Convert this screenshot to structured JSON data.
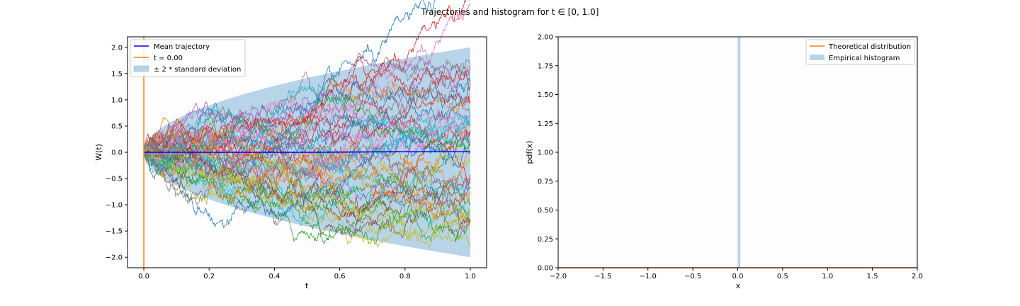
{
  "figure": {
    "title": "Trajectories and histogram for t ∈ [0, 1.0]"
  },
  "chart_data": [
    {
      "type": "line",
      "xlabel": "t",
      "ylabel": "W(t)",
      "xlim": [
        -0.05,
        1.05
      ],
      "ylim": [
        -2.2,
        2.2
      ],
      "xticks": [
        "0.0",
        "0.2",
        "0.4",
        "0.6",
        "0.8",
        "1.0"
      ],
      "xtick_values": [
        0.0,
        0.2,
        0.4,
        0.6,
        0.8,
        1.0
      ],
      "yticks": [
        "−2.0",
        "−1.5",
        "−1.0",
        "−0.5",
        "0.0",
        "0.5",
        "1.0",
        "1.5",
        "2.0"
      ],
      "ytick_values": [
        -2.0,
        -1.5,
        -1.0,
        -0.5,
        0.0,
        0.5,
        1.0,
        1.5,
        2.0
      ],
      "grid": false,
      "legend_placement": "top-left",
      "legend": [
        {
          "label": "Mean trajectory",
          "kind": "line",
          "color": "#0000ff"
        },
        {
          "label": "t = 0.00",
          "kind": "line",
          "color": "#ff7f0e"
        },
        {
          "label": "± 2 * standard deviation",
          "kind": "patch",
          "color": "#b8d4e8"
        }
      ],
      "band": {
        "t_start": 0.0,
        "t_end": 1.0,
        "half_width": "2 * sqrt(t)",
        "color": "#b8d4e8"
      },
      "mean_trajectory": {
        "t": [
          0.0,
          0.25,
          0.5,
          0.75,
          1.0
        ],
        "values": [
          0.0,
          0.0,
          0.0,
          0.01,
          0.01
        ],
        "color": "#0000ff"
      },
      "time_marker": {
        "t": 0.0,
        "color": "#ff7f0e"
      },
      "trajectories": {
        "count": 50,
        "t_range": [
          0.0,
          1.0
        ],
        "colors": [
          "#1f77b4",
          "#ff7f0e",
          "#2ca02c",
          "#d62728",
          "#9467bd",
          "#8c564b",
          "#e377c2",
          "#7f7f7f",
          "#bcbd22",
          "#17becf"
        ]
      }
    },
    {
      "type": "bar",
      "xlabel": "x",
      "ylabel": "pdf(x)",
      "xlim": [
        -2.0,
        2.0
      ],
      "ylim": [
        0.0,
        2.0
      ],
      "xticks": [
        "−2.0",
        "−1.5",
        "−1.0",
        "−0.5",
        "0.0",
        "0.5",
        "1.0",
        "1.5",
        "2.0"
      ],
      "xtick_values": [
        -2.0,
        -1.5,
        -1.0,
        -0.5,
        0.0,
        0.5,
        1.0,
        1.5,
        2.0
      ],
      "yticks": [
        "0.00",
        "0.25",
        "0.50",
        "0.75",
        "1.00",
        "1.25",
        "1.50",
        "1.75",
        "2.00"
      ],
      "ytick_values": [
        0.0,
        0.25,
        0.5,
        0.75,
        1.0,
        1.25,
        1.5,
        1.75,
        2.0
      ],
      "grid": false,
      "legend_placement": "top-right",
      "legend": [
        {
          "label": "Theoretical distribution",
          "kind": "line",
          "color": "#ff7f0e"
        },
        {
          "label": "Empirical histogram",
          "kind": "patch",
          "color": "#b8d4e8"
        }
      ],
      "histogram": {
        "bin_left": 0.0,
        "bin_right": 0.03,
        "value": 2.0,
        "color": "#b8d4e8"
      },
      "theoretical": {
        "x": [
          -2.0,
          2.0
        ],
        "y": [
          0.0,
          0.0
        ],
        "color": "#ff7f0e"
      }
    }
  ]
}
